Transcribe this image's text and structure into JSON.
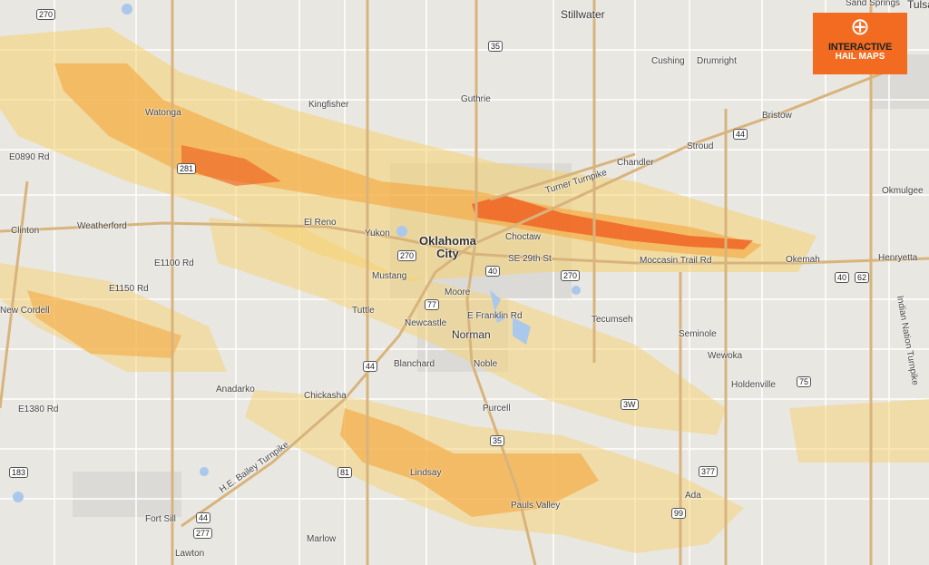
{
  "logo": {
    "line1": "INTERACTIVE",
    "line2": "HAIL MAPS",
    "icon": "lightning-crosshair-icon",
    "color": "#f26b21"
  },
  "colors": {
    "hail_light": "#f6d26e",
    "hail_medium": "#f5a53a",
    "hail_heavy": "#ef5a1c",
    "road": "#d8b47c",
    "water": "#a9c8ec"
  },
  "cities": [
    "Stillwater",
    "Cushing",
    "Drumright",
    "Guthrie",
    "Kingfisher",
    "Watonga",
    "Bristow",
    "Chandler",
    "Stroud",
    "Okmulgee",
    "El Reno",
    "Yukon",
    "Choctaw",
    "Clinton",
    "Weatherford",
    "Henryetta",
    "Okemah",
    "Mustang",
    "Moore",
    "Tuttle",
    "New Cordell",
    "Newcastle",
    "Norman",
    "Tecumseh",
    "Seminole",
    "Blanchard",
    "Noble",
    "Wewoka",
    "Holdenville",
    "Anadarko",
    "Chickasha",
    "Purcell",
    "Lindsay",
    "Ada",
    "Pauls Valley",
    "Fort Sill",
    "Marlow",
    "Lawton",
    "Tulsa",
    "Sand Springs"
  ],
  "main_city": {
    "line1": "Oklahoma",
    "line2": "City"
  },
  "shields": [
    "270",
    "35",
    "40",
    "44",
    "40",
    "270",
    "77",
    "44",
    "81",
    "35",
    "377",
    "75",
    "62",
    "183",
    "277",
    "44",
    "270",
    "281",
    "3W",
    "99"
  ],
  "roads": [
    "Turner Turnpike",
    "H.E. Bailey Turnpike",
    "Indian Nation Turnpike",
    "E0890 Rd",
    "E1100 Rd",
    "E1150 Rd",
    "E1380 Rd",
    "Moccasin Trail Rd",
    "SE 29th St",
    "E Franklin Rd"
  ]
}
